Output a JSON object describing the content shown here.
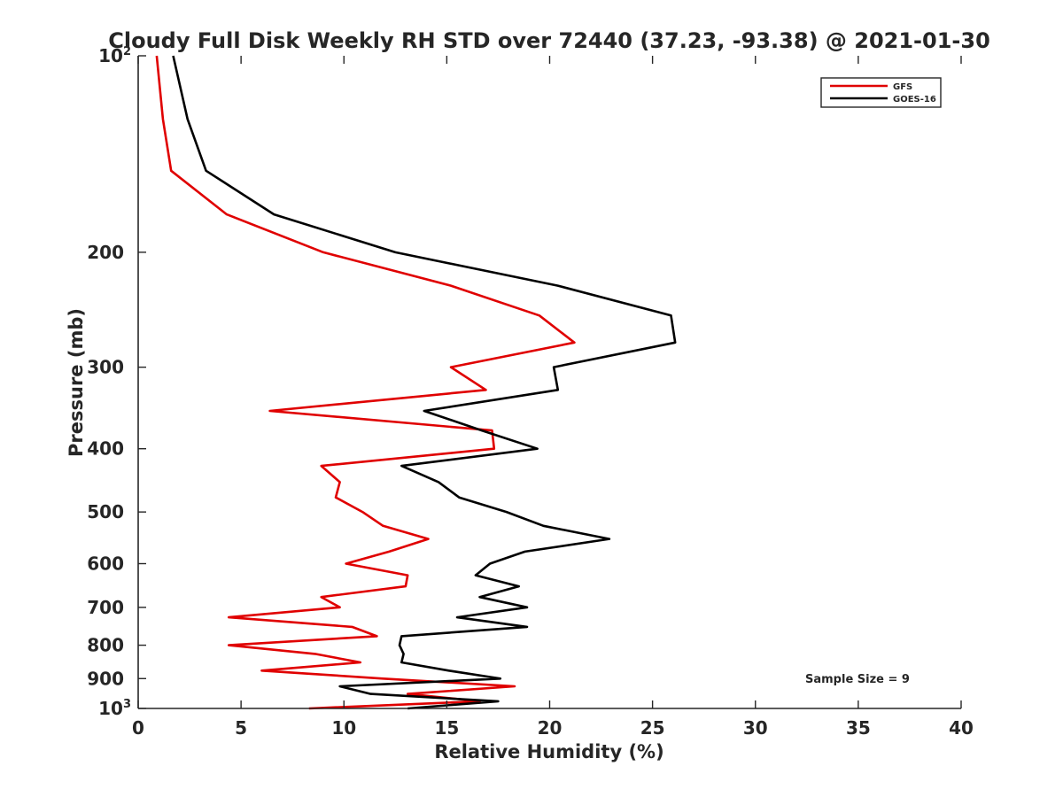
{
  "chart_data": {
    "type": "line",
    "title": "Cloudy Full Disk Weekly RH STD over 72440 (37.23, -93.38) @ 2021-01-30",
    "xlabel": "Relative Humidity (%)",
    "ylabel": "Pressure (mb)",
    "xlim": [
      0,
      40
    ],
    "ylim": [
      100,
      1000
    ],
    "y_scale": "log",
    "y_reversed": true,
    "grid": false,
    "legend_position": "top-right",
    "x_ticks": [
      0,
      5,
      10,
      15,
      20,
      25,
      30,
      35,
      40
    ],
    "x_tick_labels": [
      "0",
      "5",
      "10",
      "15",
      "20",
      "25",
      "30",
      "35",
      "40"
    ],
    "y_ticks": [
      100,
      200,
      300,
      400,
      500,
      600,
      700,
      800,
      900,
      1000
    ],
    "y_tick_labels": [
      {
        "base": "10",
        "exp": "2"
      },
      {
        "base": "200",
        "exp": ""
      },
      {
        "base": "300",
        "exp": ""
      },
      {
        "base": "400",
        "exp": ""
      },
      {
        "base": "500",
        "exp": ""
      },
      {
        "base": "600",
        "exp": ""
      },
      {
        "base": "700",
        "exp": ""
      },
      {
        "base": "800",
        "exp": ""
      },
      {
        "base": "900",
        "exp": ""
      },
      {
        "base": "10",
        "exp": "3"
      }
    ],
    "annotation": "Sample Size = 9",
    "series": [
      {
        "name": "GFS",
        "color": "#e00000",
        "points": [
          [
            0.9,
            100
          ],
          [
            1.2,
            125
          ],
          [
            1.6,
            150
          ],
          [
            4.3,
            175
          ],
          [
            9.0,
            200
          ],
          [
            15.2,
            225
          ],
          [
            19.5,
            250
          ],
          [
            21.2,
            275
          ],
          [
            15.2,
            300
          ],
          [
            16.9,
            325
          ],
          [
            6.4,
            350
          ],
          [
            17.2,
            375
          ],
          [
            17.3,
            400
          ],
          [
            8.9,
            425
          ],
          [
            9.8,
            450
          ],
          [
            9.6,
            475
          ],
          [
            10.9,
            500
          ],
          [
            11.9,
            525
          ],
          [
            14.1,
            550
          ],
          [
            12.2,
            575
          ],
          [
            10.1,
            600
          ],
          [
            13.1,
            625
          ],
          [
            13.0,
            650
          ],
          [
            8.9,
            675
          ],
          [
            9.8,
            700
          ],
          [
            4.4,
            725
          ],
          [
            10.4,
            750
          ],
          [
            11.6,
            775
          ],
          [
            4.4,
            800
          ],
          [
            8.6,
            825
          ],
          [
            10.8,
            850
          ],
          [
            6.0,
            875
          ],
          [
            11.9,
            900
          ],
          [
            18.3,
            925
          ],
          [
            13.1,
            950
          ],
          [
            16.6,
            975
          ],
          [
            8.3,
            1000
          ]
        ]
      },
      {
        "name": "GOES-16",
        "color": "#000000",
        "points": [
          [
            1.7,
            100
          ],
          [
            2.4,
            125
          ],
          [
            3.3,
            150
          ],
          [
            6.6,
            175
          ],
          [
            12.5,
            200
          ],
          [
            20.4,
            225
          ],
          [
            25.9,
            250
          ],
          [
            26.1,
            275
          ],
          [
            20.2,
            300
          ],
          [
            20.4,
            325
          ],
          [
            13.9,
            350
          ],
          [
            16.7,
            375
          ],
          [
            19.4,
            400
          ],
          [
            12.8,
            425
          ],
          [
            14.6,
            450
          ],
          [
            15.6,
            475
          ],
          [
            17.9,
            500
          ],
          [
            19.7,
            525
          ],
          [
            22.9,
            550
          ],
          [
            18.8,
            575
          ],
          [
            17.1,
            600
          ],
          [
            16.4,
            625
          ],
          [
            18.5,
            650
          ],
          [
            16.6,
            675
          ],
          [
            18.9,
            700
          ],
          [
            15.5,
            725
          ],
          [
            18.9,
            750
          ],
          [
            12.8,
            775
          ],
          [
            12.7,
            800
          ],
          [
            12.9,
            825
          ],
          [
            12.8,
            850
          ],
          [
            15.1,
            875
          ],
          [
            17.6,
            900
          ],
          [
            9.8,
            925
          ],
          [
            11.3,
            950
          ],
          [
            17.5,
            975
          ],
          [
            13.1,
            1000
          ]
        ]
      }
    ]
  }
}
